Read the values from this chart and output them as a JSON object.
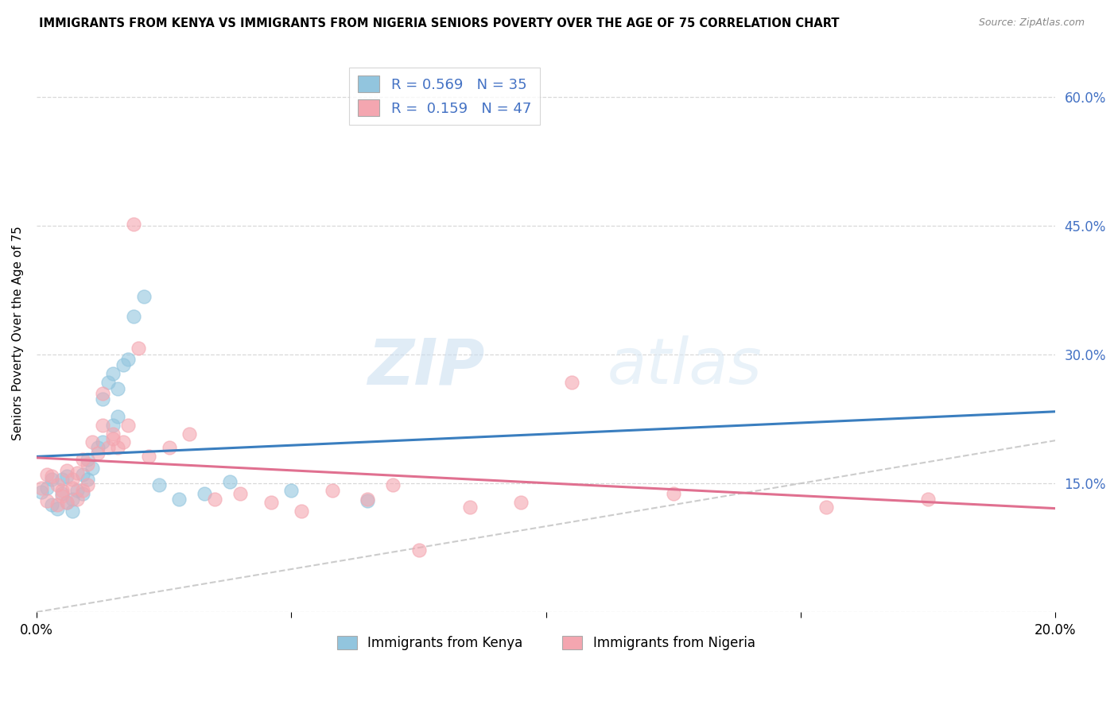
{
  "title": "IMMIGRANTS FROM KENYA VS IMMIGRANTS FROM NIGERIA SENIORS POVERTY OVER THE AGE OF 75 CORRELATION CHART",
  "source": "Source: ZipAtlas.com",
  "ylabel": "Seniors Poverty Over the Age of 75",
  "xlabel_kenya": "Immigrants from Kenya",
  "xlabel_nigeria": "Immigrants from Nigeria",
  "xlim": [
    0,
    0.2
  ],
  "ylim": [
    0,
    0.65
  ],
  "ytick_vals": [
    0.0,
    0.15,
    0.3,
    0.45,
    0.6
  ],
  "ytick_labels_right": [
    "",
    "15.0%",
    "30.0%",
    "45.0%",
    "60.0%"
  ],
  "xtick_vals": [
    0.0,
    0.05,
    0.1,
    0.15,
    0.2
  ],
  "kenya_R": 0.569,
  "kenya_N": 35,
  "nigeria_R": 0.159,
  "nigeria_N": 47,
  "kenya_color": "#92c5de",
  "nigeria_color": "#f4a6b0",
  "kenya_line_color": "#3a7ebf",
  "nigeria_line_color": "#e07090",
  "diag_line_color": "#c0c0c0",
  "right_label_color": "#4472c4",
  "background_color": "#ffffff",
  "grid_color": "#d8d8d8",
  "watermark": "ZIPatlas",
  "kenya_x": [
    0.001,
    0.002,
    0.003,
    0.003,
    0.004,
    0.005,
    0.005,
    0.006,
    0.006,
    0.007,
    0.007,
    0.008,
    0.009,
    0.009,
    0.01,
    0.01,
    0.011,
    0.012,
    0.013,
    0.013,
    0.014,
    0.015,
    0.015,
    0.016,
    0.016,
    0.017,
    0.018,
    0.019,
    0.021,
    0.024,
    0.028,
    0.033,
    0.038,
    0.05,
    0.065
  ],
  "kenya_y": [
    0.14,
    0.145,
    0.125,
    0.155,
    0.12,
    0.155,
    0.138,
    0.128,
    0.158,
    0.132,
    0.118,
    0.142,
    0.138,
    0.16,
    0.178,
    0.155,
    0.168,
    0.192,
    0.198,
    0.248,
    0.268,
    0.218,
    0.278,
    0.26,
    0.228,
    0.288,
    0.295,
    0.345,
    0.368,
    0.148,
    0.132,
    0.138,
    0.152,
    0.142,
    0.13
  ],
  "nigeria_x": [
    0.001,
    0.002,
    0.002,
    0.003,
    0.004,
    0.004,
    0.005,
    0.005,
    0.006,
    0.006,
    0.007,
    0.007,
    0.008,
    0.008,
    0.009,
    0.009,
    0.01,
    0.01,
    0.011,
    0.012,
    0.013,
    0.013,
    0.014,
    0.015,
    0.015,
    0.016,
    0.017,
    0.018,
    0.019,
    0.02,
    0.022,
    0.026,
    0.03,
    0.035,
    0.04,
    0.046,
    0.052,
    0.058,
    0.065,
    0.07,
    0.075,
    0.085,
    0.095,
    0.105,
    0.125,
    0.155,
    0.175
  ],
  "nigeria_y": [
    0.145,
    0.16,
    0.13,
    0.158,
    0.125,
    0.148,
    0.142,
    0.135,
    0.165,
    0.128,
    0.145,
    0.155,
    0.162,
    0.132,
    0.178,
    0.142,
    0.148,
    0.172,
    0.198,
    0.185,
    0.218,
    0.255,
    0.192,
    0.202,
    0.208,
    0.192,
    0.198,
    0.218,
    0.452,
    0.308,
    0.182,
    0.192,
    0.208,
    0.132,
    0.138,
    0.128,
    0.118,
    0.142,
    0.132,
    0.148,
    0.072,
    0.122,
    0.128,
    0.268,
    0.138,
    0.122,
    0.132
  ]
}
